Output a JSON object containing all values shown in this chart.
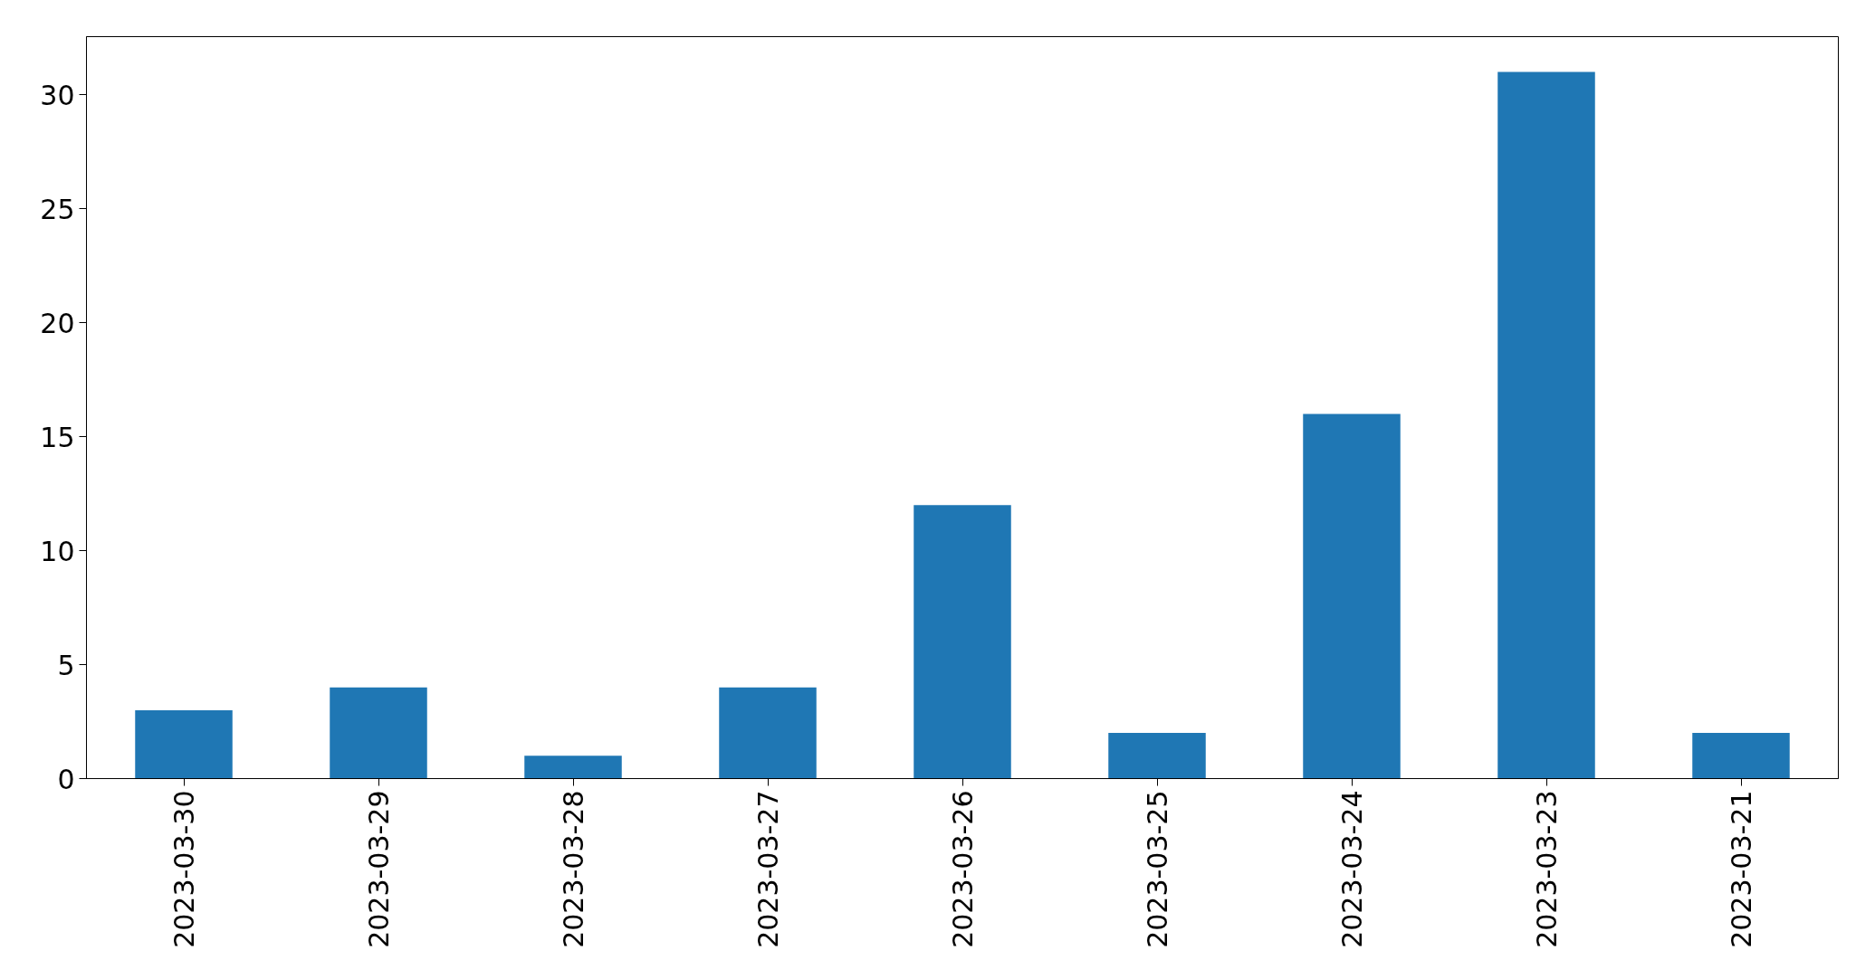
{
  "chart_data": {
    "type": "bar",
    "categories": [
      "2023-03-30",
      "2023-03-29",
      "2023-03-28",
      "2023-03-27",
      "2023-03-26",
      "2023-03-25",
      "2023-03-24",
      "2023-03-23",
      "2023-03-21"
    ],
    "values": [
      3,
      4,
      1,
      4,
      12,
      2,
      16,
      31,
      2
    ],
    "color": "#1f77b4",
    "ylim": [
      0,
      32.55
    ],
    "yticks": [
      0,
      5,
      10,
      15,
      20,
      25,
      30
    ],
    "grid": false
  }
}
